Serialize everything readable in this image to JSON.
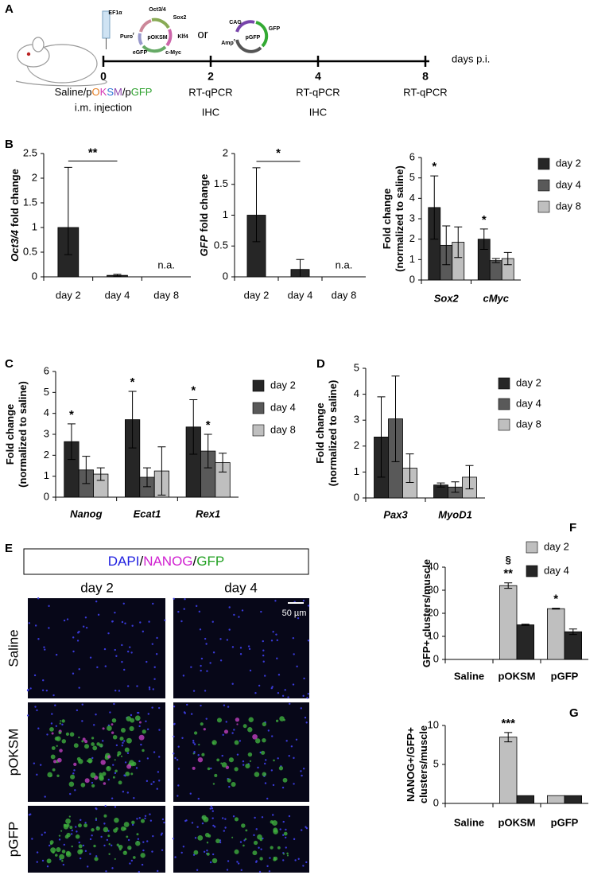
{
  "panel_labels": [
    "A",
    "B",
    "C",
    "D",
    "E",
    "F",
    "G"
  ],
  "panel_a": {
    "pokSM_plasmid": {
      "name": "pOKSM",
      "labels": [
        "EF1α",
        "Oct3/4",
        "Sox2",
        "Klf4",
        "c-Myc",
        "eGFP",
        "Puro"
      ],
      "superscript": "r"
    },
    "or": "or",
    "pgfp_plasmid": {
      "name": "pGFP",
      "labels": [
        "CAG",
        "GFP",
        "Amp"
      ],
      "superscript": "r"
    },
    "timeline": [
      "0",
      "2",
      "4",
      "8"
    ],
    "timeline_unit": "days p.i.",
    "treatment_parts": [
      "Saline/p",
      "O",
      "K",
      "S",
      "M",
      "/p",
      "GFP"
    ],
    "injection": "i.m. injection",
    "assays": [
      [],
      [
        "RT-qPCR",
        "IHC"
      ],
      [
        "RT-qPCR",
        "IHC"
      ],
      [
        "RT-qPCR"
      ]
    ]
  },
  "panel_e": {
    "stain_parts": [
      "DAPI",
      "/",
      "NANOG",
      "/",
      "GFP"
    ],
    "columns": [
      "day 2",
      "day 4"
    ],
    "rows": [
      "Saline",
      "pOKSM",
      "pGFP"
    ],
    "scale_bar": "50 µm"
  },
  "chart_data": [
    {
      "type": "bar",
      "ylabel_italic": "Oct3/4",
      "ylabel": "fold change",
      "categories": [
        "day 2",
        "day 4",
        "day 8"
      ],
      "values": [
        1,
        0.03,
        null
      ],
      "value_labels": [
        null,
        null,
        "n.a."
      ],
      "errors_lower": [
        0.55,
        0.02,
        null
      ],
      "errors_upper": [
        1.22,
        0.02,
        null
      ],
      "color": "#262626",
      "comparison": "**",
      "ylim": [
        0,
        2.5
      ],
      "yticks": [
        0,
        0.5,
        1,
        1.5,
        2,
        2.5
      ]
    },
    {
      "type": "bar",
      "ylabel_italic": "GFP",
      "ylabel": "fold change",
      "categories": [
        "day 2",
        "day 4",
        "day 8"
      ],
      "values": [
        1,
        0.12,
        null
      ],
      "value_labels": [
        null,
        null,
        "n.a."
      ],
      "errors_lower": [
        0.43,
        0.12,
        null
      ],
      "errors_upper": [
        0.77,
        0.16,
        null
      ],
      "color": "#262626",
      "comparison": "*",
      "ylim": [
        0,
        2
      ],
      "yticks": [
        0,
        0.5,
        1,
        1.5,
        2
      ]
    },
    {
      "type": "bar",
      "ylabel": [
        "Fold change",
        "(normalized to saline)"
      ],
      "category_style": "italic",
      "categories": [
        "Sox2",
        "cMyc"
      ],
      "legend": "upper right",
      "series": [
        {
          "name": "day 2",
          "color": "#262626",
          "values": [
            3.55,
            2.0
          ],
          "errors": [
            1.55,
            0.5
          ],
          "significance": [
            "*",
            "*"
          ]
        },
        {
          "name": "day 4",
          "color": "#595959",
          "values": [
            1.7,
            0.95
          ],
          "errors": [
            0.95,
            0.1
          ]
        },
        {
          "name": "day 8",
          "color": "#bfbfbf",
          "values": [
            1.85,
            1.05
          ],
          "errors": [
            0.75,
            0.3
          ]
        }
      ],
      "ylim": [
        0,
        6
      ],
      "yticks": [
        0,
        1,
        2,
        3,
        4,
        5,
        6
      ]
    },
    {
      "type": "bar",
      "ylabel": [
        "Fold change",
        "(normalized to saline)"
      ],
      "category_style": "italic",
      "categories": [
        "Nanog",
        "Ecat1",
        "Rex1"
      ],
      "legend": "upper right",
      "series": [
        {
          "name": "day 2",
          "color": "#262626",
          "values": [
            2.65,
            3.7,
            3.35
          ],
          "errors": [
            0.85,
            1.35,
            1.3
          ],
          "significance": [
            "*",
            "*",
            "*"
          ]
        },
        {
          "name": "day 4",
          "color": "#595959",
          "values": [
            1.3,
            0.95,
            2.2
          ],
          "errors": [
            0.65,
            0.45,
            0.8
          ],
          "significance": [
            null,
            null,
            "*"
          ]
        },
        {
          "name": "day 8",
          "color": "#bfbfbf",
          "values": [
            1.1,
            1.25,
            1.65
          ],
          "errors": [
            0.3,
            1.15,
            0.45
          ]
        }
      ],
      "ylim": [
        0,
        6
      ],
      "yticks": [
        0,
        1,
        2,
        3,
        4,
        5,
        6
      ]
    },
    {
      "type": "bar",
      "ylabel": [
        "Fold change",
        "(normalized to saline)"
      ],
      "category_style": "italic",
      "categories": [
        "Pax3",
        "MyoD1"
      ],
      "legend": "upper right",
      "series": [
        {
          "name": "day 2",
          "color": "#262626",
          "values": [
            2.35,
            0.5
          ],
          "errors": [
            1.55,
            0.08
          ]
        },
        {
          "name": "day 4",
          "color": "#595959",
          "values": [
            3.05,
            0.42
          ],
          "errors": [
            1.65,
            0.2
          ]
        },
        {
          "name": "day 8",
          "color": "#bfbfbf",
          "values": [
            1.15,
            0.8
          ],
          "errors": [
            0.55,
            0.45
          ]
        }
      ],
      "ylim": [
        0,
        5
      ],
      "yticks": [
        0,
        1,
        2,
        3,
        4,
        5
      ]
    },
    {
      "type": "bar",
      "ylabel": [
        "GFP+ clusters/muscle"
      ],
      "category_style": "bold",
      "categories": [
        "Saline",
        "pOKSM",
        "pGFP"
      ],
      "legend": "upper right",
      "series": [
        {
          "name": "day 2",
          "color": "#bfbfbf",
          "values": [
            0,
            32,
            22
          ],
          "errors": [
            0,
            1.2,
            0.2
          ],
          "significance": [
            null,
            "**",
            "*"
          ],
          "significance_extra": [
            null,
            "§",
            null
          ]
        },
        {
          "name": "day 4",
          "color": "#262626",
          "values": [
            0,
            15,
            12
          ],
          "errors": [
            0,
            0.3,
            1.2
          ]
        }
      ],
      "ylim": [
        0,
        40
      ],
      "yticks": [
        0,
        10,
        20,
        30,
        40
      ]
    },
    {
      "type": "bar",
      "ylabel": [
        "NANOG+/GFP+",
        "clusters/muscle"
      ],
      "category_style": "bold",
      "categories": [
        "Saline",
        "pOKSM",
        "pGFP"
      ],
      "series": [
        {
          "color": "#bfbfbf",
          "values": [
            0,
            8.5,
            1
          ],
          "errors": [
            0,
            0.6,
            0
          ],
          "significance": [
            null,
            "***",
            null
          ]
        },
        {
          "color": "#262626",
          "values": [
            0,
            1,
            1
          ],
          "errors": [
            0,
            0,
            0
          ]
        }
      ],
      "ylim": [
        0,
        10
      ],
      "yticks": [
        0,
        5,
        10
      ]
    }
  ]
}
